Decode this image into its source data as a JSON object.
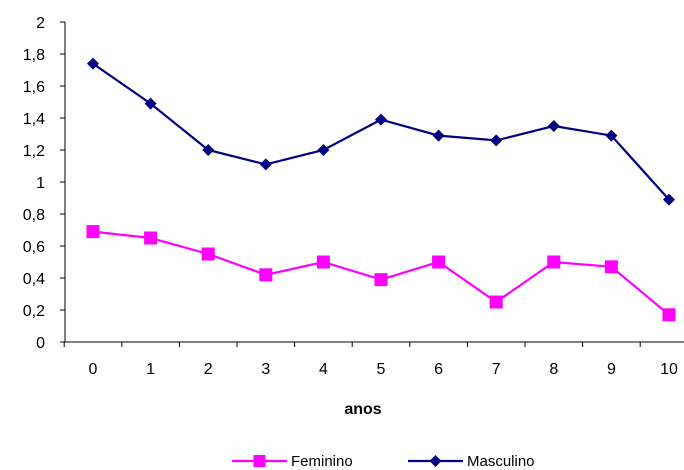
{
  "chart_data": {
    "type": "line",
    "title": "",
    "xlabel": "anos",
    "ylabel": "",
    "x": [
      0,
      1,
      2,
      3,
      4,
      5,
      6,
      7,
      8,
      9,
      10
    ],
    "x_tick_labels": [
      "0",
      "1",
      "2",
      "3",
      "4",
      "5",
      "6",
      "7",
      "8",
      "9",
      "10"
    ],
    "ylim": [
      0,
      2
    ],
    "y_tick_labels": [
      "0",
      "0,2",
      "0,4",
      "0,6",
      "0,8",
      "1",
      "1,2",
      "1,4",
      "1,6",
      "1,8",
      "2"
    ],
    "grid": false,
    "legend_position": "bottom",
    "series": [
      {
        "name": "Feminino",
        "color": "#ff00ff",
        "marker": "square",
        "values": [
          0.69,
          0.65,
          0.55,
          0.42,
          0.5,
          0.39,
          0.5,
          0.25,
          0.5,
          0.47,
          0.17
        ]
      },
      {
        "name": "Masculino",
        "color": "#000080",
        "marker": "diamond",
        "values": [
          1.74,
          1.49,
          1.2,
          1.11,
          1.2,
          1.39,
          1.29,
          1.26,
          1.35,
          1.29,
          0.89
        ]
      }
    ]
  }
}
